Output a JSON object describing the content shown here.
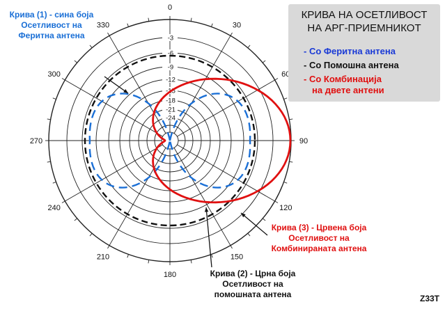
{
  "legend": {
    "title": [
      "КРИВА НА ОСЕТЛИВОСТ",
      "НА АРГ-ПРИЕМНИКОТ"
    ],
    "items": [
      {
        "text": "- Со Феритна антена",
        "color": "#1a3ad6"
      },
      {
        "text": "- Со Помошна антена",
        "color": "#111111"
      },
      {
        "text": "- Со Комбинација",
        "text2": "на двете антени",
        "color": "#e01010"
      }
    ]
  },
  "annotations": {
    "curve1": [
      "Крива (1) - сина боја",
      "Осетливост на",
      "Феритна антена"
    ],
    "curve2": [
      "Крива (2) - Црна боја",
      "Осетливост на",
      "помошната антена"
    ],
    "curve3": [
      "Крива (3) - Црвена боја",
      "Осетливост на",
      "Комбинираната антена"
    ]
  },
  "colors": {
    "ferrite": "#1a6fd6",
    "sense": "#111111",
    "combined": "#e01010",
    "legend_bg": "#d9d9d9"
  },
  "angles": [
    "0",
    "30",
    "60",
    "90",
    "120",
    "150",
    "180",
    "210",
    "240",
    "270",
    "300",
    "330"
  ],
  "db_rings": [
    "-3",
    "-6",
    "-9",
    "-12",
    "-15",
    "-18",
    "-21",
    "-24"
  ],
  "figure_code": "Z33T"
}
